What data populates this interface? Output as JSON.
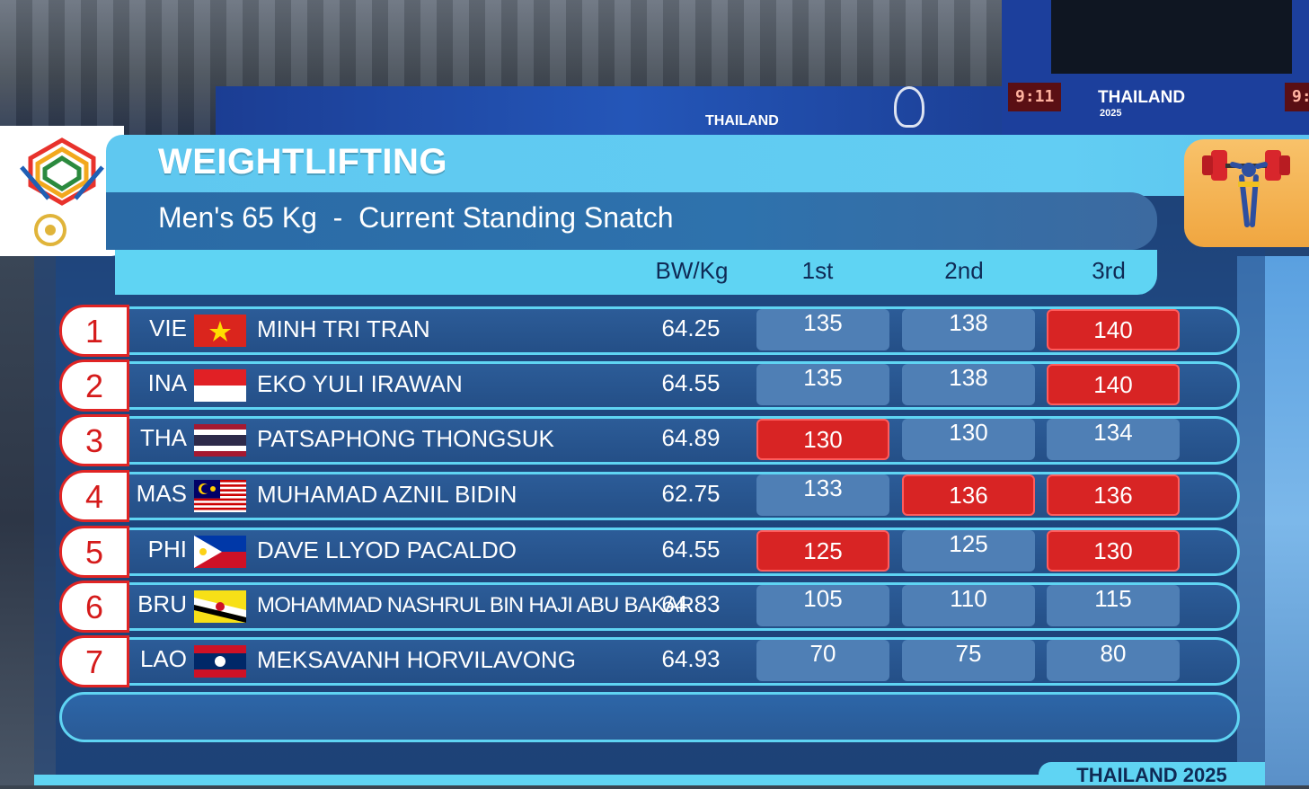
{
  "venue": {
    "clock_left": "9:11",
    "clock_right": "9:",
    "brand": "THAILAND",
    "brand_year": "2025",
    "banner_text": "THAILAND"
  },
  "header": {
    "title": "WEIGHTLIFTING",
    "subtitle": "Men's 65 Kg  -  Current Standing Snatch"
  },
  "columns": {
    "bw": "BW/Kg",
    "first": "1st",
    "second": "2nd",
    "third": "3rd"
  },
  "rows": [
    {
      "rank": "1",
      "nation": "VIE",
      "flag": "vietnam",
      "name": "MINH TRI TRAN",
      "bw": "64.25",
      "lifts": [
        {
          "v": "135",
          "fail": false
        },
        {
          "v": "138",
          "fail": false
        },
        {
          "v": "140",
          "fail": true
        }
      ]
    },
    {
      "rank": "2",
      "nation": "INA",
      "flag": "indonesia",
      "name": "EKO YULI IRAWAN",
      "bw": "64.55",
      "lifts": [
        {
          "v": "135",
          "fail": false
        },
        {
          "v": "138",
          "fail": false
        },
        {
          "v": "140",
          "fail": true
        }
      ]
    },
    {
      "rank": "3",
      "nation": "THA",
      "flag": "thailand",
      "name": "PATSAPHONG THONGSUK",
      "bw": "64.89",
      "lifts": [
        {
          "v": "130",
          "fail": true
        },
        {
          "v": "130",
          "fail": false
        },
        {
          "v": "134",
          "fail": false
        }
      ]
    },
    {
      "rank": "4",
      "nation": "MAS",
      "flag": "malaysia",
      "name": "MUHAMAD AZNIL BIDIN",
      "bw": "62.75",
      "lifts": [
        {
          "v": "133",
          "fail": false
        },
        {
          "v": "136",
          "fail": true
        },
        {
          "v": "136",
          "fail": true
        }
      ]
    },
    {
      "rank": "5",
      "nation": "PHI",
      "flag": "philippines",
      "name": "DAVE LLYOD PACALDO",
      "bw": "64.55",
      "lifts": [
        {
          "v": "125",
          "fail": true
        },
        {
          "v": "125",
          "fail": false
        },
        {
          "v": "130",
          "fail": true
        }
      ]
    },
    {
      "rank": "6",
      "nation": "BRU",
      "flag": "brunei",
      "name": "MOHAMMAD NASHRUL BIN HAJI ABU BAKAR",
      "bw": "64.83",
      "lifts": [
        {
          "v": "105",
          "fail": false
        },
        {
          "v": "110",
          "fail": false
        },
        {
          "v": "115",
          "fail": false
        }
      ]
    },
    {
      "rank": "7",
      "nation": "LAO",
      "flag": "laos",
      "name": "MEKSAVANH HORVILAVONG",
      "bw": "64.93",
      "lifts": [
        {
          "v": "70",
          "fail": false
        },
        {
          "v": "75",
          "fail": false
        },
        {
          "v": "80",
          "fail": false
        }
      ]
    }
  ],
  "footer": {
    "tag": "THAILAND 2025"
  },
  "colors": {
    "accent": "#5fd4f3",
    "fail": "#d82424",
    "cell": "#4f7fb5",
    "rank_border": "#e02424"
  },
  "icons": {
    "games_logo": "sea-games-logo-icon",
    "sport": "weightlifting-icon"
  }
}
